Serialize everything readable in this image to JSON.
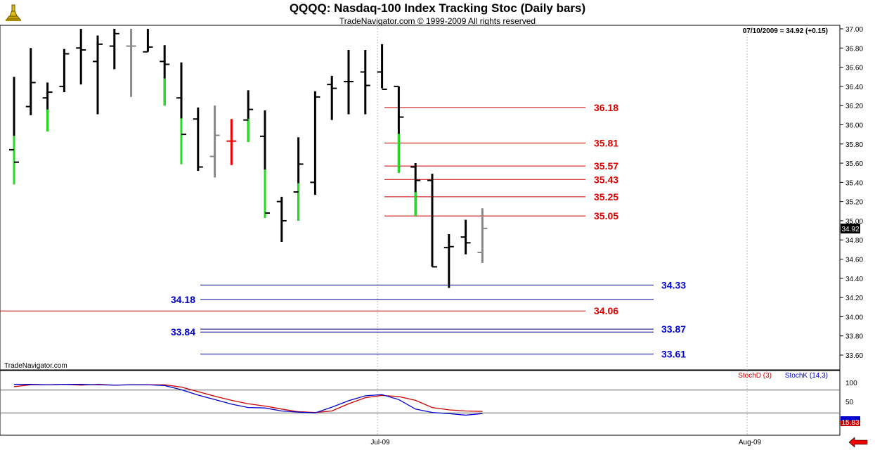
{
  "header": {
    "title": "QQQQ:  Nasdaq-100 Index Tracking Stoc  (Daily bars)",
    "subtitle": "TradeNavigator.com © 1999-2009 All rights reserved"
  },
  "status": {
    "last_readout": "07/10/2009 = 34.92 (+0.15)",
    "watermark": "TradeNavigator.com",
    "current_price_tag": "34.92",
    "stoch_value_tag": "15.83"
  },
  "colors": {
    "up_bar": "#22dd22",
    "down_bar": "#000000",
    "neutral_bar": "#888888",
    "red_bar": "#ee0000",
    "resistance": "#cc0000",
    "support": "#000099",
    "stoch_d": "#cc0000",
    "stoch_k": "#0000cc"
  },
  "chart_data": [
    {
      "type": "ohlc",
      "ylim": [
        33.5,
        37.0
      ],
      "y_ticks": [
        "37.00",
        "36.80",
        "36.60",
        "36.40",
        "36.20",
        "36.00",
        "35.80",
        "35.60",
        "35.40",
        "35.20",
        "35.00",
        "34.80",
        "34.60",
        "34.40",
        "34.20",
        "34.00",
        "33.80",
        "33.60"
      ],
      "x_ticks": [
        "Jul-09",
        "Aug-09"
      ],
      "bars": [
        {
          "o": 35.74,
          "h": 36.5,
          "l": 35.38,
          "c": 35.61,
          "col": "mix"
        },
        {
          "o": 36.19,
          "h": 36.8,
          "l": 36.1,
          "c": 36.44,
          "col": "black"
        },
        {
          "o": 36.28,
          "h": 36.44,
          "l": 35.93,
          "c": 36.34,
          "col": "mix"
        },
        {
          "o": 36.4,
          "h": 36.79,
          "l": 36.34,
          "c": 36.74,
          "col": "black"
        },
        {
          "o": 36.8,
          "h": 37.0,
          "l": 36.42,
          "c": 36.78,
          "col": "black"
        },
        {
          "o": 36.66,
          "h": 36.93,
          "l": 36.11,
          "c": 36.84,
          "col": "black"
        },
        {
          "o": 36.82,
          "h": 37.0,
          "l": 36.58,
          "c": 36.95,
          "col": "black"
        },
        {
          "o": 36.82,
          "h": 37.0,
          "l": 36.29,
          "c": 36.82,
          "col": "gray"
        },
        {
          "o": 36.76,
          "h": 37.0,
          "l": 36.76,
          "c": 36.81,
          "col": "black"
        },
        {
          "o": 36.66,
          "h": 36.83,
          "l": 36.2,
          "c": 36.63,
          "col": "mix"
        },
        {
          "o": 36.28,
          "h": 36.65,
          "l": 35.59,
          "c": 35.9,
          "col": "mix"
        },
        {
          "o": 36.06,
          "h": 36.18,
          "l": 35.52,
          "c": 35.56,
          "col": "black"
        },
        {
          "o": 35.67,
          "h": 36.2,
          "l": 35.45,
          "c": 35.89,
          "col": "gray"
        },
        {
          "o": 35.83,
          "h": 36.06,
          "l": 35.58,
          "c": 35.83,
          "col": "red"
        },
        {
          "o": 36.05,
          "h": 36.36,
          "l": 35.82,
          "c": 36.16,
          "col": "mix"
        },
        {
          "o": 35.88,
          "h": 36.15,
          "l": 35.03,
          "c": 35.08,
          "col": "mix"
        },
        {
          "o": 35.2,
          "h": 35.25,
          "l": 34.78,
          "c": 35.0,
          "col": "black"
        },
        {
          "o": 35.3,
          "h": 35.87,
          "l": 35.0,
          "c": 35.59,
          "col": "mix"
        },
        {
          "o": 35.4,
          "h": 36.35,
          "l": 35.27,
          "c": 36.29,
          "col": "black"
        },
        {
          "o": 36.42,
          "h": 36.51,
          "l": 36.05,
          "c": 36.38,
          "col": "black"
        },
        {
          "o": 36.45,
          "h": 36.78,
          "l": 36.11,
          "c": 36.45,
          "col": "black"
        },
        {
          "o": 36.55,
          "h": 36.78,
          "l": 36.11,
          "c": 36.41,
          "col": "black"
        },
        {
          "o": 36.55,
          "h": 36.84,
          "l": 36.38,
          "c": 36.37,
          "col": "black"
        },
        {
          "o": 36.4,
          "h": 36.4,
          "l": 35.5,
          "c": 36.08,
          "col": "mix"
        },
        {
          "o": 35.56,
          "h": 35.6,
          "l": 35.05,
          "c": 35.42,
          "col": "mix"
        },
        {
          "o": 35.42,
          "h": 35.49,
          "l": 34.52,
          "c": 34.52,
          "col": "black"
        },
        {
          "o": 34.72,
          "h": 34.86,
          "l": 34.3,
          "c": 34.73,
          "col": "black"
        },
        {
          "o": 34.83,
          "h": 35.01,
          "l": 34.65,
          "c": 34.77,
          "col": "black"
        },
        {
          "o": 34.67,
          "h": 35.13,
          "l": 34.56,
          "c": 34.92,
          "col": "gray"
        }
      ],
      "levels": [
        {
          "value": 36.18,
          "label": "36.18",
          "color": "red",
          "range": "short"
        },
        {
          "value": 35.81,
          "label": "35.81",
          "color": "red",
          "range": "short"
        },
        {
          "value": 35.57,
          "label": "35.57",
          "color": "red",
          "range": "short"
        },
        {
          "value": 35.43,
          "label": "35.43",
          "color": "red",
          "range": "short"
        },
        {
          "value": 35.25,
          "label": "35.25",
          "color": "red",
          "range": "short"
        },
        {
          "value": 35.05,
          "label": "35.05",
          "color": "red",
          "range": "short"
        },
        {
          "value": 34.33,
          "label": "34.33",
          "color": "blue",
          "range": "wide-right"
        },
        {
          "value": 34.18,
          "label": "34.18",
          "color": "blue",
          "range": "wide-left"
        },
        {
          "value": 34.06,
          "label": "34.06",
          "color": "red",
          "range": "full"
        },
        {
          "value": 33.87,
          "label": "33.87",
          "color": "blue",
          "range": "wide-right"
        },
        {
          "value": 33.84,
          "label": "33.84",
          "color": "blue",
          "range": "wide-left"
        },
        {
          "value": 33.61,
          "label": "33.61",
          "color": "blue",
          "range": "wide-right"
        }
      ]
    },
    {
      "type": "line",
      "ylim": [
        0,
        100
      ],
      "y_ticks": [
        "100",
        "50",
        "0"
      ],
      "ref_lines": [
        80,
        20
      ],
      "legend": [
        "StochD (3)",
        "StochK (14,3)"
      ],
      "series": [
        {
          "name": "StochD (3)",
          "color": "red",
          "values": [
            89,
            94,
            94,
            95,
            93,
            95,
            93,
            94,
            94,
            94,
            88,
            76,
            64,
            53,
            44,
            38,
            30,
            23,
            21,
            25,
            44,
            60,
            66,
            63,
            53,
            34,
            28,
            25,
            24
          ]
        },
        {
          "name": "StochK (14,3)",
          "color": "blue",
          "values": [
            95,
            95,
            94,
            95,
            95,
            94,
            93,
            94,
            94,
            92,
            81,
            67,
            55,
            43,
            34,
            33,
            25,
            22,
            20,
            35,
            52,
            65,
            68,
            55,
            30,
            21,
            18,
            14,
            18
          ]
        }
      ]
    }
  ]
}
